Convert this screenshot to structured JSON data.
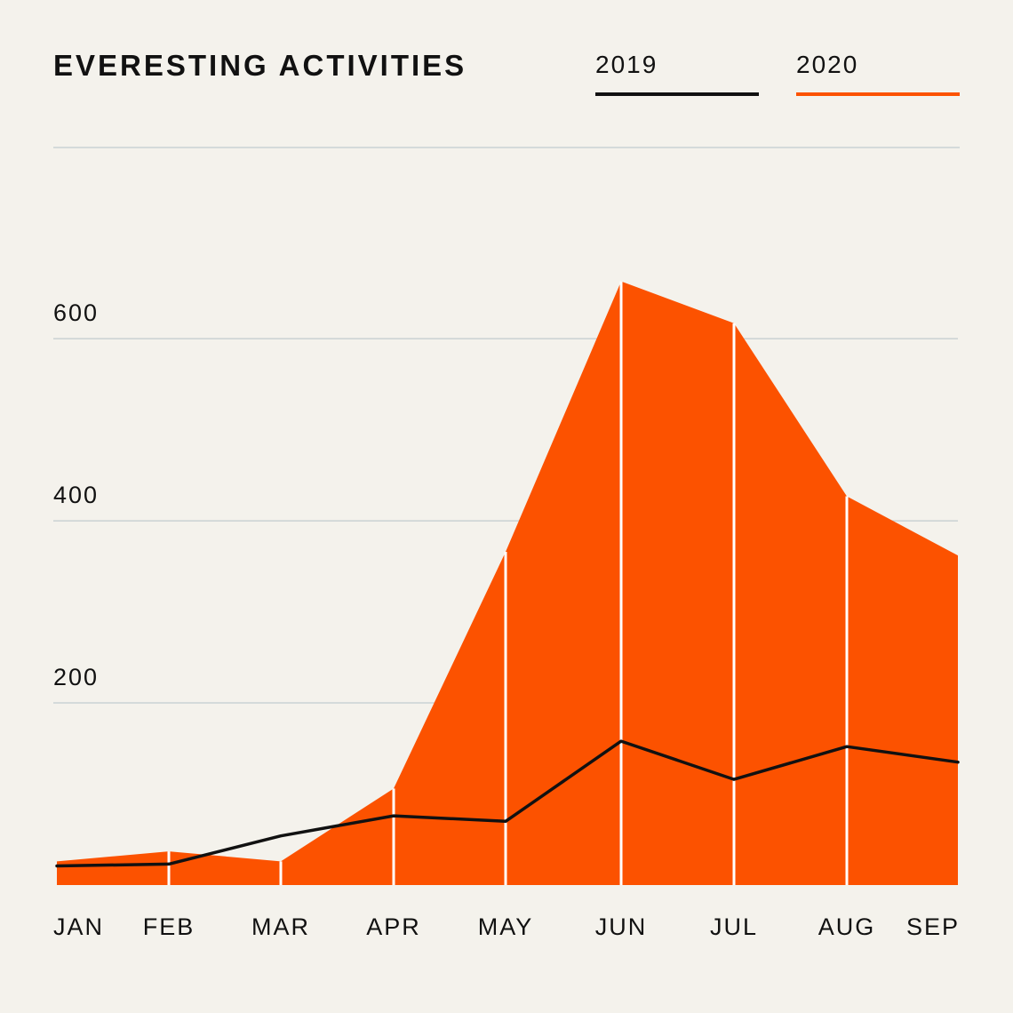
{
  "chart_data": {
    "type": "area",
    "title": "EVERESTING ACTIVITIES",
    "categories": [
      "JAN",
      "FEB",
      "MAR",
      "APR",
      "MAY",
      "JUN",
      "JUL",
      "AUG",
      "SEP"
    ],
    "series": [
      {
        "name": "2019",
        "style": "line",
        "color": "#111111",
        "values": [
          21,
          23,
          54,
          76,
          70,
          158,
          116,
          152,
          135
        ]
      },
      {
        "name": "2020",
        "style": "area",
        "color": "#fc5200",
        "values": [
          26,
          37,
          26,
          106,
          366,
          663,
          617,
          427,
          362
        ]
      }
    ],
    "y_ticks": [
      "200",
      "400",
      "600"
    ],
    "y_tick_values": [
      200,
      400,
      600
    ],
    "ylim": [
      0,
      810
    ],
    "grid": "horizontal",
    "legend_position": "top-right",
    "gridline_color": "#c9d1d3",
    "divider_color": "#ffffff"
  }
}
